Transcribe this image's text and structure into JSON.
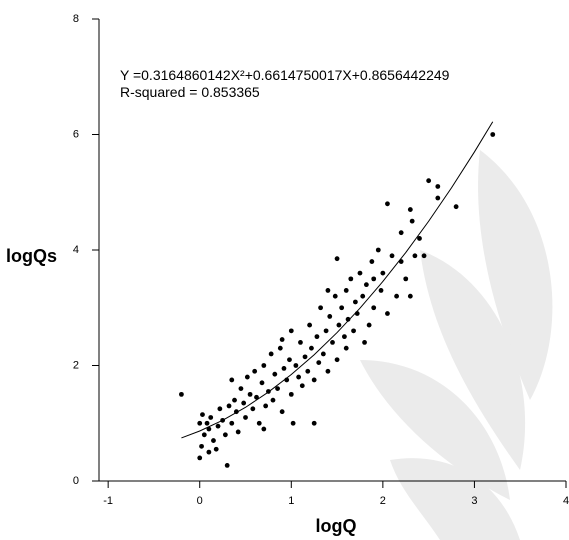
{
  "chart_data": {
    "type": "scatter",
    "annotations": [
      "Y =0.3164860142X²+0.6614750017X+0.8656442249",
      "R-squared = 0.853365"
    ],
    "xlabel": "logQ",
    "ylabel": "logQs",
    "xlim": [
      -1.1,
      4
    ],
    "xticks": [
      -1,
      0,
      1,
      2,
      3,
      4
    ],
    "ylim": [
      0,
      8
    ],
    "yticks": [
      0,
      2,
      4,
      6,
      8
    ],
    "color": "#000000",
    "points": {
      "x": [
        -0.2,
        0,
        0.02,
        0.05,
        0.08,
        0.1,
        0.12,
        0,
        0.03,
        0.15,
        0.18,
        0.2,
        0.22,
        0.25,
        0.28,
        0.3,
        0.32,
        0.35,
        0.38,
        0.4,
        0.42,
        0.45,
        0.48,
        0.5,
        0.52,
        0.55,
        0.58,
        0.6,
        0.62,
        0.65,
        0.68,
        0.7,
        0.72,
        0.75,
        0.78,
        0.8,
        0.82,
        0.85,
        0.88,
        0.9,
        0.92,
        0.95,
        0.98,
        1,
        1,
        1.02,
        1.05,
        1.08,
        1.1,
        1.12,
        1.15,
        1.18,
        1.2,
        1.22,
        1.25,
        1.28,
        1.3,
        1.32,
        1.35,
        1.38,
        1.4,
        1.42,
        1.45,
        1.48,
        1.5,
        1.5,
        1.52,
        1.55,
        1.58,
        1.6,
        1.62,
        1.65,
        1.68,
        1.7,
        1.72,
        1.75,
        1.78,
        1.8,
        1.82,
        1.85,
        1.88,
        1.9,
        1.95,
        1.98,
        2,
        2.05,
        2.05,
        2.1,
        2.15,
        2.2,
        2.25,
        2.3,
        2.3,
        2.32,
        2.35,
        2.4,
        2.45,
        2.5,
        2.6,
        2.6,
        2.8,
        3.2,
        1.25,
        0.7,
        0.1,
        1.6,
        2.2,
        1.9,
        0.9,
        0.35,
        1.4
      ],
      "y": [
        1.5,
        0.4,
        0.6,
        0.8,
        1,
        0.9,
        1.1,
        1,
        1.15,
        0.7,
        0.55,
        0.95,
        1.25,
        1.05,
        0.8,
        0.27,
        1.3,
        1,
        1.4,
        1.2,
        0.85,
        1.6,
        1.35,
        1.1,
        1.8,
        1.5,
        1.25,
        1.9,
        1.45,
        1,
        1.7,
        2,
        1.3,
        1.55,
        2.2,
        1.4,
        1.85,
        1.6,
        2.3,
        1.2,
        1.95,
        1.75,
        2.1,
        1.5,
        2.6,
        1,
        2,
        1.8,
        2.4,
        1.65,
        2.15,
        1.9,
        2.7,
        2.3,
        1.75,
        2.5,
        2.05,
        3,
        2.2,
        2.6,
        1.9,
        2.85,
        2.4,
        3.2,
        3.85,
        2.1,
        2.7,
        3,
        2.5,
        3.3,
        2.8,
        3.5,
        2.6,
        3.1,
        2.9,
        3.6,
        3.2,
        2.4,
        3.4,
        2.7,
        3.8,
        3,
        4,
        3.3,
        3.6,
        4.8,
        2.9,
        3.9,
        3.2,
        4.3,
        3.5,
        4.7,
        3.2,
        4.5,
        3.9,
        4.2,
        3.9,
        5.2,
        5.1,
        4.9,
        4.75,
        6,
        1,
        0.9,
        0.5,
        2.3,
        3.8,
        3.5,
        2.45,
        1.75,
        3.3
      ]
    },
    "fit": {
      "x": [
        -0.2,
        0,
        0.25,
        0.5,
        0.75,
        1,
        1.25,
        1.5,
        1.75,
        2,
        2.25,
        2.5,
        2.75,
        3,
        3.2
      ],
      "y": [
        0.746,
        0.866,
        1.051,
        1.275,
        1.54,
        1.844,
        2.187,
        2.57,
        2.992,
        3.455,
        3.956,
        4.498,
        5.078,
        5.698,
        6.221
      ]
    }
  }
}
